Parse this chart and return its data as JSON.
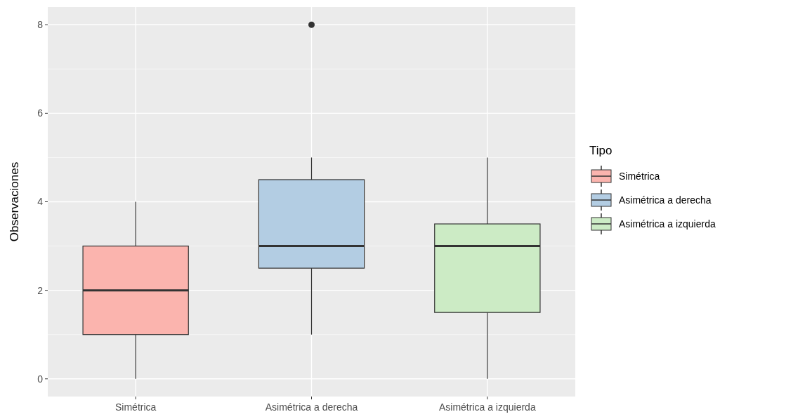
{
  "chart_data": {
    "type": "box",
    "ylabel": "Observaciones",
    "legend_title": "Tipo",
    "legend": "right",
    "grid": true,
    "categories": [
      "Simétrica",
      "Asimétrica a derecha",
      "Asimétrica a izquierda"
    ],
    "series": [
      {
        "name": "Simétrica",
        "color": "#fbb4ae",
        "boxes": [
          {
            "low": 0,
            "q1": 1,
            "median": 2,
            "q3": 3,
            "high": 4
          },
          null,
          null
        ]
      },
      {
        "name": "Asimétrica a derecha",
        "color": "#b3cde3",
        "boxes": [
          null,
          {
            "low": 1,
            "q1": 2.5,
            "median": 3,
            "q3": 4.5,
            "high": 5,
            "outliers": [
              8
            ]
          },
          null
        ]
      },
      {
        "name": "Asimétrica a izquierda",
        "color": "#ccebc5",
        "boxes": [
          null,
          null,
          {
            "low": 0,
            "q1": 1.5,
            "median": 3,
            "q3": 3.5,
            "high": 5
          }
        ]
      }
    ],
    "ylim": [
      -0.4,
      8.4
    ],
    "yticks": [
      0,
      2,
      4,
      6,
      8
    ]
  }
}
